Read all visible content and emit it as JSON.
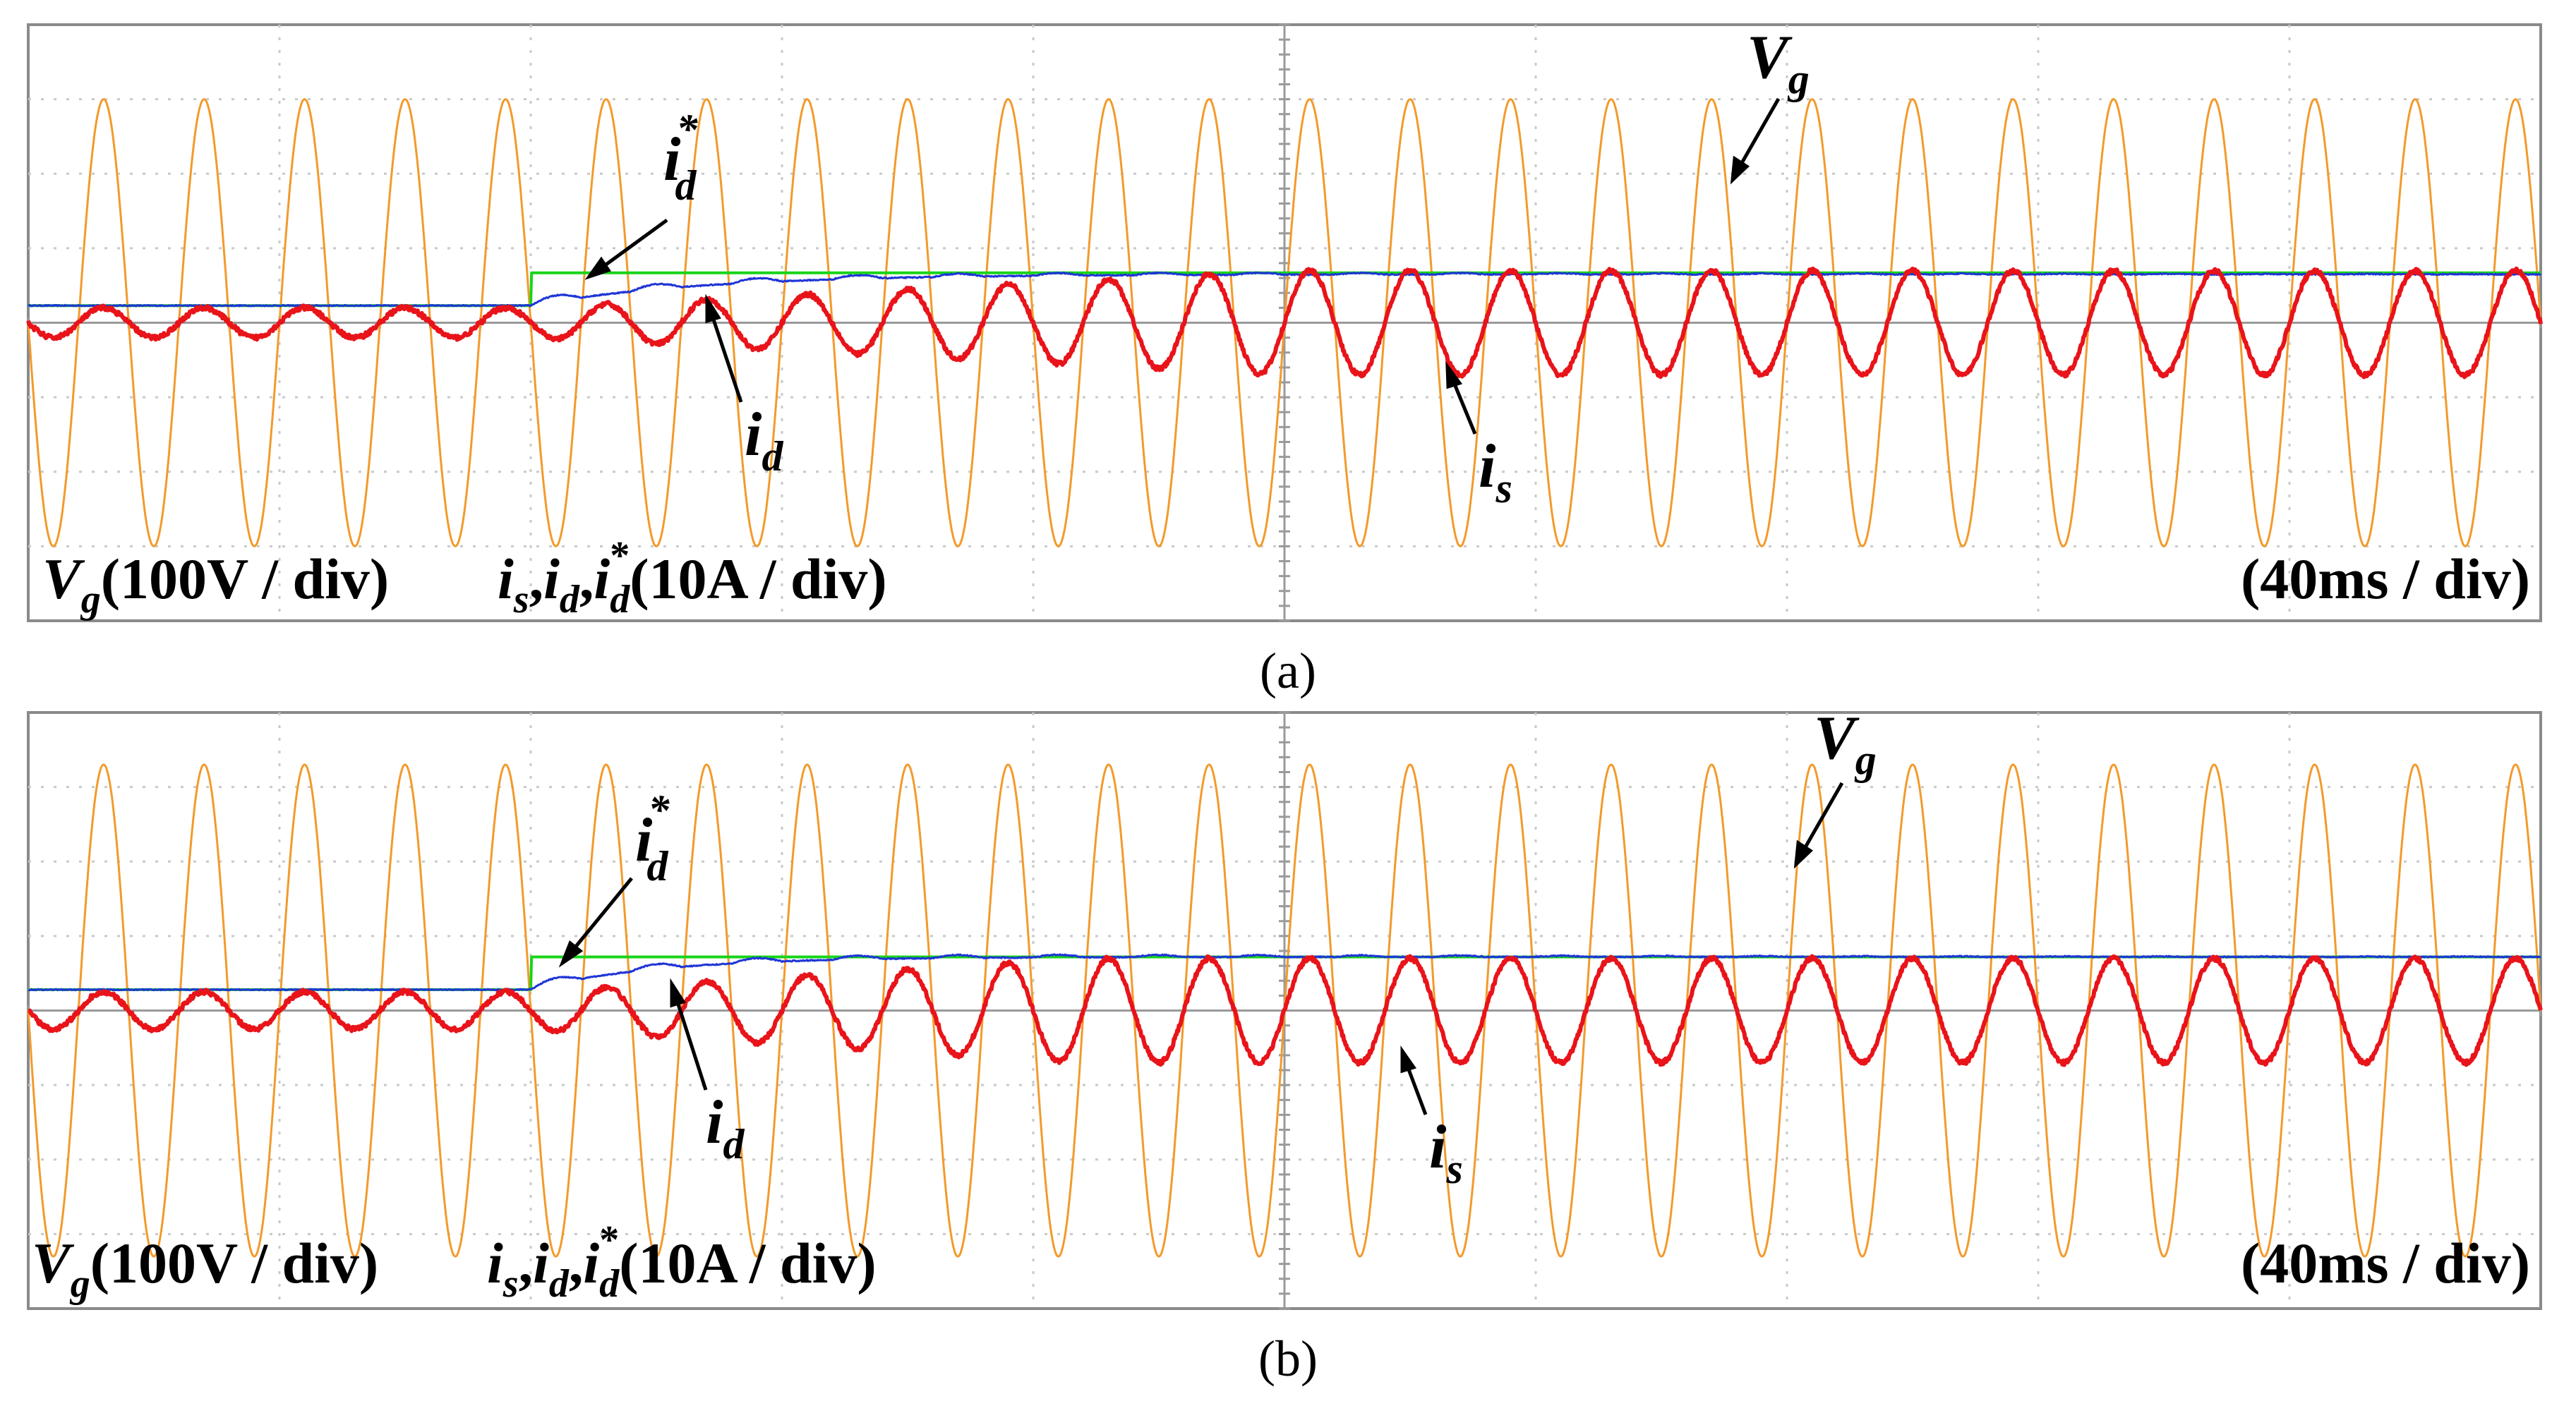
{
  "colors": {
    "vg": "#f39a2b",
    "is": "#e8141a",
    "id": "#1f35d6",
    "id_ref": "#19d419",
    "grid": "#c9c9c9",
    "axis": "#9a9a9a",
    "frame": "#8a8a8a",
    "text": "#000000"
  },
  "panels": [
    {
      "caption": "(a)",
      "scale_labels": {
        "vg": {
          "sym": "V",
          "sub": "g",
          "rest": "(100V / div)"
        },
        "currents": {
          "rest": "(10A / div)"
        },
        "time": "(40ms / div)"
      },
      "trace_labels": {
        "vg": {
          "sym": "V",
          "sub": "g"
        },
        "id_ref": {
          "sym": "i",
          "sub": "d",
          "sup": "*"
        },
        "id": {
          "sym": "i",
          "sub": "d"
        },
        "is": {
          "sym": "i",
          "sub": "s"
        }
      }
    },
    {
      "caption": "(b)",
      "scale_labels": {
        "vg": {
          "sym": "V",
          "sub": "g",
          "rest": "(100V / div)"
        },
        "currents": {
          "rest": "(10A / div)"
        },
        "time": "(40ms / div)"
      },
      "trace_labels": {
        "vg": {
          "sym": "V",
          "sub": "g"
        },
        "id_ref": {
          "sym": "i",
          "sub": "d",
          "sup": "*"
        },
        "id": {
          "sym": "i",
          "sub": "d"
        },
        "is": {
          "sym": "i",
          "sub": "s"
        }
      }
    }
  ],
  "chart_data": [
    {
      "type": "line",
      "title": "",
      "xlabel": "",
      "ylabel": "",
      "grid": true,
      "divisions": {
        "x": 10,
        "y": 8
      },
      "xlim_div": [
        0,
        10
      ],
      "ylim_div": [
        -4,
        4
      ],
      "series": [
        {
          "name": "Vg",
          "kind": "sine",
          "cycles": 25,
          "amplitude_div": 3.0,
          "offset_div": 0
        },
        {
          "name": "is",
          "kind": "sine_step",
          "cycles": 25,
          "amp_before_div": 0.2,
          "amp_after_div": 0.7,
          "step_div": 2.0,
          "settle_div": 3.0,
          "offset_div": 0
        },
        {
          "name": "id",
          "kind": "first_order",
          "before_div": 0.23,
          "after_div": 0.65,
          "step_div": 2.0,
          "settle_div": 2.0
        },
        {
          "name": "id*",
          "kind": "step",
          "before_div": 0.23,
          "after_div": 0.67,
          "step_div": 2.0
        }
      ]
    },
    {
      "type": "line",
      "title": "",
      "xlabel": "",
      "ylabel": "",
      "grid": true,
      "divisions": {
        "x": 10,
        "y": 8
      },
      "xlim_div": [
        0,
        10
      ],
      "ylim_div": [
        -4,
        4
      ],
      "series": [
        {
          "name": "Vg",
          "kind": "sine",
          "cycles": 25,
          "amplitude_div": 3.3,
          "offset_div": 0
        },
        {
          "name": "is",
          "kind": "sine_step",
          "cycles": 25,
          "amp_before_div": 0.25,
          "amp_after_div": 0.7,
          "step_div": 2.0,
          "settle_div": 2.2,
          "offset_div": 0
        },
        {
          "name": "id",
          "kind": "first_order",
          "before_div": 0.28,
          "after_div": 0.72,
          "step_div": 2.0,
          "settle_div": 1.5
        },
        {
          "name": "id*",
          "kind": "step",
          "before_div": 0.28,
          "after_div": 0.72,
          "step_div": 2.0
        }
      ]
    }
  ]
}
